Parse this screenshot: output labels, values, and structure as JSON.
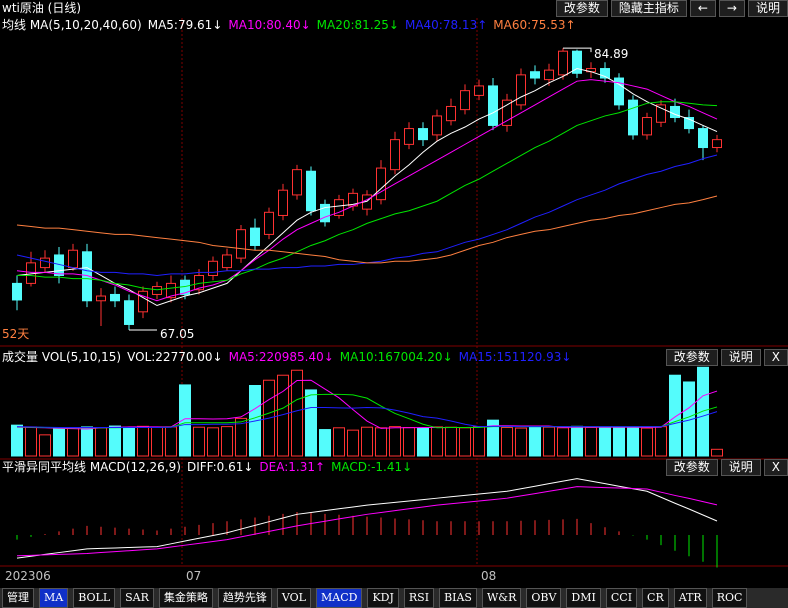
{
  "header": {
    "title": "wti原油 (日线)",
    "buttons": [
      "改参数",
      "隐藏主指标",
      "←",
      "→",
      "说明"
    ]
  },
  "chart_data": [
    {
      "type": "candlestick",
      "title": "均线 MA(5,10,20,40,60)",
      "annotation": "52天",
      "up_color": "#ff3232",
      "down_color": "#54fcfc",
      "ylim": [
        66.1,
        86.8
      ],
      "open": [
        70.0,
        70.0,
        71.0,
        71.8,
        71.0,
        72.0,
        68.9,
        69.3,
        68.9,
        68.2,
        69.3,
        69.1,
        70.2,
        69.6,
        70.5,
        71.0,
        71.6,
        73.5,
        73.1,
        74.3,
        75.6,
        77.1,
        75.0,
        74.3,
        74.9,
        74.7,
        75.3,
        77.2,
        78.8,
        79.8,
        79.4,
        80.3,
        81.0,
        81.9,
        82.5,
        80.0,
        81.3,
        83.4,
        82.9,
        83.2,
        84.7,
        83.4,
        83.6,
        83.0,
        81.6,
        79.4,
        80.2,
        81.2,
        80.5,
        79.8,
        78.6
      ],
      "high": [
        70.5,
        72.0,
        72.1,
        72.3,
        72.5,
        72.5,
        69.7,
        69.8,
        69.3,
        69.8,
        70.1,
        70.5,
        70.5,
        70.9,
        71.7,
        72.2,
        73.7,
        74.1,
        74.8,
        76.3,
        77.5,
        77.4,
        75.3,
        75.6,
        76.0,
        75.9,
        77.8,
        79.6,
        80.2,
        80.2,
        81.0,
        81.7,
        82.6,
        82.9,
        83.0,
        82.0,
        83.6,
        83.8,
        83.9,
        84.89,
        84.8,
        84.0,
        84.0,
        83.3,
        81.9,
        80.8,
        81.6,
        81.7,
        81.0,
        80.0,
        79.4
      ],
      "low": [
        68.3,
        69.8,
        70.7,
        70.0,
        70.8,
        68.5,
        67.3,
        68.5,
        67.05,
        67.8,
        69.0,
        68.8,
        69.0,
        69.3,
        70.2,
        70.8,
        71.3,
        72.1,
        72.8,
        74.0,
        75.3,
        74.3,
        73.6,
        74.1,
        74.6,
        74.3,
        75.0,
        76.9,
        78.5,
        78.7,
        79.0,
        80.0,
        80.7,
        81.6,
        79.7,
        79.6,
        81.0,
        82.6,
        82.5,
        82.9,
        83.0,
        83.0,
        82.7,
        81.0,
        79.1,
        79.1,
        79.9,
        80.2,
        79.5,
        77.8,
        78.3
      ],
      "close": [
        68.95,
        71.3,
        71.6,
        70.5,
        72.1,
        68.9,
        69.2,
        68.9,
        67.4,
        69.5,
        69.8,
        70.0,
        69.3,
        70.5,
        71.4,
        71.8,
        73.4,
        72.4,
        74.5,
        75.9,
        77.2,
        74.6,
        73.9,
        75.3,
        75.7,
        75.6,
        77.3,
        79.1,
        79.8,
        79.1,
        80.6,
        81.2,
        82.2,
        82.5,
        80.0,
        81.6,
        83.2,
        83.0,
        83.5,
        84.7,
        83.3,
        83.6,
        83.0,
        81.3,
        79.4,
        80.5,
        81.3,
        80.5,
        79.8,
        78.6,
        79.1
      ],
      "series": [
        {
          "name": "MA5:79.61↓",
          "color": "#ffffff",
          "values": [
            70.5,
            70.6,
            70.7,
            70.8,
            70.9,
            71.0,
            70.5,
            70.0,
            69.6,
            69.1,
            68.6,
            68.9,
            69.2,
            69.4,
            69.7,
            70.0,
            70.8,
            71.6,
            72.4,
            73.2,
            74.0,
            74.5,
            74.8,
            74.9,
            75.0,
            75.2,
            76.0,
            76.8,
            77.5,
            78.3,
            79.0,
            79.5,
            79.9,
            80.4,
            80.8,
            81.3,
            81.8,
            82.2,
            82.7,
            83.1,
            83.6,
            83.4,
            83.1,
            82.6,
            82.0,
            81.5,
            81.1,
            80.7,
            80.4,
            80.0,
            79.61
          ]
        },
        {
          "name": "MA10:80.40↓",
          "color": "#ff00ff",
          "values": [
            70.8,
            70.7,
            70.7,
            70.6,
            70.6,
            70.5,
            70.2,
            69.9,
            69.5,
            69.2,
            68.9,
            69.2,
            69.4,
            69.7,
            69.9,
            70.2,
            70.8,
            71.5,
            72.1,
            72.8,
            73.4,
            73.8,
            74.2,
            74.5,
            74.9,
            75.3,
            75.8,
            76.3,
            76.8,
            77.3,
            77.8,
            78.3,
            78.8,
            79.3,
            79.8,
            80.3,
            80.8,
            81.3,
            81.8,
            82.3,
            82.8,
            82.9,
            82.8,
            82.7,
            82.5,
            82.3,
            81.9,
            81.5,
            81.2,
            80.8,
            80.4
          ]
        },
        {
          "name": "MA20:81.25↓",
          "color": "#00e600",
          "values": [
            70.5,
            70.5,
            70.4,
            70.4,
            70.3,
            70.3,
            70.2,
            70.0,
            69.9,
            69.7,
            69.6,
            69.7,
            69.8,
            70.0,
            70.1,
            70.2,
            70.6,
            70.9,
            71.3,
            71.6,
            72.0,
            72.4,
            72.7,
            73.1,
            73.4,
            73.8,
            74.1,
            74.4,
            74.6,
            74.9,
            75.2,
            75.7,
            76.2,
            76.6,
            77.1,
            77.6,
            78.1,
            78.6,
            79.0,
            79.5,
            80.0,
            80.3,
            80.6,
            80.8,
            81.1,
            81.4,
            81.5,
            81.5,
            81.4,
            81.3,
            81.25
          ]
        },
        {
          "name": "MA40:78.13↑",
          "color": "#2020ff",
          "values": [
            71.8,
            71.6,
            71.4,
            71.2,
            71.0,
            70.8,
            70.7,
            70.7,
            70.6,
            70.6,
            70.5,
            70.6,
            70.6,
            70.7,
            70.7,
            70.8,
            70.8,
            70.9,
            70.9,
            71.0,
            71.0,
            71.1,
            71.1,
            71.2,
            71.2,
            71.3,
            71.4,
            71.6,
            71.7,
            71.9,
            72.0,
            72.3,
            72.6,
            72.8,
            73.1,
            73.4,
            73.8,
            74.2,
            74.5,
            74.9,
            75.3,
            75.6,
            75.9,
            76.3,
            76.6,
            76.9,
            77.1,
            77.4,
            77.6,
            77.9,
            78.13
          ]
        },
        {
          "name": "MA60:75.53↑",
          "color": "#ff8040",
          "values": [
            73.7,
            73.6,
            73.5,
            73.5,
            73.4,
            73.3,
            73.2,
            73.1,
            73.1,
            73.0,
            72.9,
            72.8,
            72.7,
            72.6,
            72.4,
            72.3,
            72.2,
            72.1,
            72.1,
            72.0,
            71.9,
            71.8,
            71.7,
            71.5,
            71.4,
            71.3,
            71.3,
            71.4,
            71.4,
            71.5,
            71.6,
            71.8,
            72.1,
            72.4,
            72.6,
            72.9,
            73.1,
            73.3,
            73.4,
            73.6,
            73.8,
            74.0,
            74.1,
            74.3,
            74.4,
            74.6,
            74.8,
            75.0,
            75.1,
            75.3,
            75.53
          ]
        }
      ]
    },
    {
      "type": "volume",
      "title": "成交量 VOL(5,10,15)",
      "value_label": "VOL:22770.00↓",
      "buttons": [
        "改参数",
        "说明",
        "X"
      ],
      "ylim": [
        0,
        320000
      ],
      "values": [
        105000,
        99000,
        72000,
        95000,
        97000,
        99000,
        96000,
        102000,
        98000,
        101000,
        97000,
        99000,
        242000,
        98000,
        96000,
        100000,
        128000,
        240000,
        258000,
        275000,
        292000,
        225000,
        90000,
        96000,
        88000,
        98000,
        96000,
        100000,
        97000,
        95000,
        99000,
        98000,
        96000,
        100000,
        122000,
        97000,
        95000,
        99000,
        98000,
        96000,
        101000,
        97000,
        99000,
        96000,
        98000,
        95000,
        100000,
        275000,
        252000,
        302000,
        22770
      ],
      "series": [
        {
          "name": "MA5:220985.40↓",
          "color": "#ff00ff",
          "values": [
            98000,
            97000,
            96000,
            94000,
            93000,
            92000,
            96000,
            98000,
            99000,
            99000,
            99000,
            99000,
            127000,
            127000,
            126000,
            127000,
            133000,
            161000,
            192000,
            220000,
            257000,
            258000,
            228000,
            198000,
            158000,
            119000,
            94000,
            96000,
            96000,
            97000,
            97000,
            97000,
            97000,
            98000,
            103000,
            103000,
            102000,
            102000,
            102000,
            97000,
            98000,
            98000,
            98000,
            98000,
            98000,
            97000,
            98000,
            133000,
            164000,
            205000,
            220985.4
          ]
        },
        {
          "name": "MA10:167004.20↓",
          "color": "#00e600",
          "values": [
            99000,
            98000,
            97000,
            96000,
            96000,
            96000,
            96000,
            96000,
            97000,
            97000,
            97000,
            98000,
            113000,
            113000,
            113000,
            113000,
            116000,
            130000,
            146000,
            163000,
            192000,
            208000,
            210000,
            210000,
            208000,
            197000,
            170000,
            145000,
            127000,
            108000,
            96000,
            97000,
            97000,
            97000,
            100000,
            100000,
            100000,
            100000,
            100000,
            100000,
            100000,
            100000,
            100000,
            100000,
            100000,
            100000,
            100000,
            117000,
            133000,
            153000,
            167004.2
          ]
        },
        {
          "name": "MA15:151120.93↓",
          "color": "#2020ff",
          "values": [
            100000,
            99000,
            98000,
            97000,
            97000,
            97000,
            97000,
            97000,
            97000,
            97000,
            97000,
            98000,
            107000,
            107000,
            108000,
            108000,
            110000,
            119000,
            129000,
            141000,
            154000,
            165000,
            165000,
            164000,
            163000,
            165000,
            164000,
            156000,
            146000,
            134000,
            129000,
            119000,
            108000,
            100000,
            101000,
            101000,
            100000,
            100000,
            100000,
            100000,
            100000,
            100000,
            100000,
            100000,
            100000,
            100000,
            100000,
            111000,
            122000,
            136000,
            151120.93
          ]
        }
      ]
    },
    {
      "type": "macd",
      "title": "平滑异同平均线 MACD(12,26,9)",
      "buttons": [
        "改参数",
        "说明",
        "X"
      ],
      "ylim": [
        -1.3,
        2.65
      ],
      "up_color": "#ff3232",
      "down_color": "#00e600",
      "series": [
        {
          "name": "DIFF:0.61↓",
          "color": "#ffffff",
          "values": [
            -1.0,
            -0.92,
            -0.84,
            -0.76,
            -0.68,
            -0.6,
            -0.58,
            -0.56,
            -0.54,
            -0.52,
            -0.5,
            -0.38,
            -0.26,
            -0.14,
            -0.02,
            0.1,
            0.26,
            0.42,
            0.58,
            0.74,
            0.9,
            0.98,
            1.06,
            1.14,
            1.22,
            1.3,
            1.36,
            1.42,
            1.48,
            1.54,
            1.6,
            1.66,
            1.72,
            1.78,
            1.84,
            1.9,
            2.01,
            2.12,
            2.23,
            2.34,
            2.45,
            2.34,
            2.23,
            2.12,
            2.01,
            1.9,
            1.64,
            1.38,
            1.13,
            0.87,
            0.61
          ]
        },
        {
          "name": "DEA:1.31↑",
          "color": "#ff00ff",
          "values": [
            -0.9,
            -0.88,
            -0.86,
            -0.84,
            -0.82,
            -0.8,
            -0.76,
            -0.72,
            -0.68,
            -0.64,
            -0.6,
            -0.52,
            -0.44,
            -0.36,
            -0.28,
            -0.2,
            -0.08,
            0.04,
            0.16,
            0.28,
            0.4,
            0.5,
            0.6,
            0.7,
            0.8,
            0.9,
            0.98,
            1.06,
            1.14,
            1.22,
            1.3,
            1.36,
            1.42,
            1.48,
            1.54,
            1.6,
            1.7,
            1.8,
            1.9,
            2.0,
            2.1,
            2.08,
            2.06,
            2.04,
            2.02,
            2.0,
            1.86,
            1.72,
            1.59,
            1.45,
            1.31
          ]
        }
      ],
      "histogram": {
        "name": "MACD:-1.41↓",
        "color": "#00e600",
        "values": [
          -0.2,
          -0.08,
          0.04,
          0.16,
          0.28,
          0.4,
          0.36,
          0.32,
          0.28,
          0.24,
          0.2,
          0.28,
          0.36,
          0.44,
          0.52,
          0.6,
          0.68,
          0.76,
          0.84,
          0.92,
          1.0,
          0.96,
          0.92,
          0.88,
          0.84,
          0.8,
          0.76,
          0.72,
          0.68,
          0.64,
          0.6,
          0.6,
          0.6,
          0.6,
          0.6,
          0.6,
          0.62,
          0.64,
          0.66,
          0.68,
          0.7,
          0.52,
          0.34,
          0.16,
          -0.02,
          -0.2,
          -0.44,
          -0.68,
          -0.92,
          -1.16,
          -1.41
        ]
      }
    }
  ],
  "x_labels": [
    "202306",
    "07",
    "08"
  ],
  "tabs": [
    "管理",
    "MA",
    "BOLL",
    "SAR",
    "集金策略",
    "趋势先锋",
    "VOL",
    "MACD",
    "KDJ",
    "RSI",
    "BIAS",
    "W&R",
    "OBV",
    "DMI",
    "CCI",
    "CR",
    "ATR",
    "ROC"
  ],
  "active_tabs": [
    1,
    7
  ]
}
